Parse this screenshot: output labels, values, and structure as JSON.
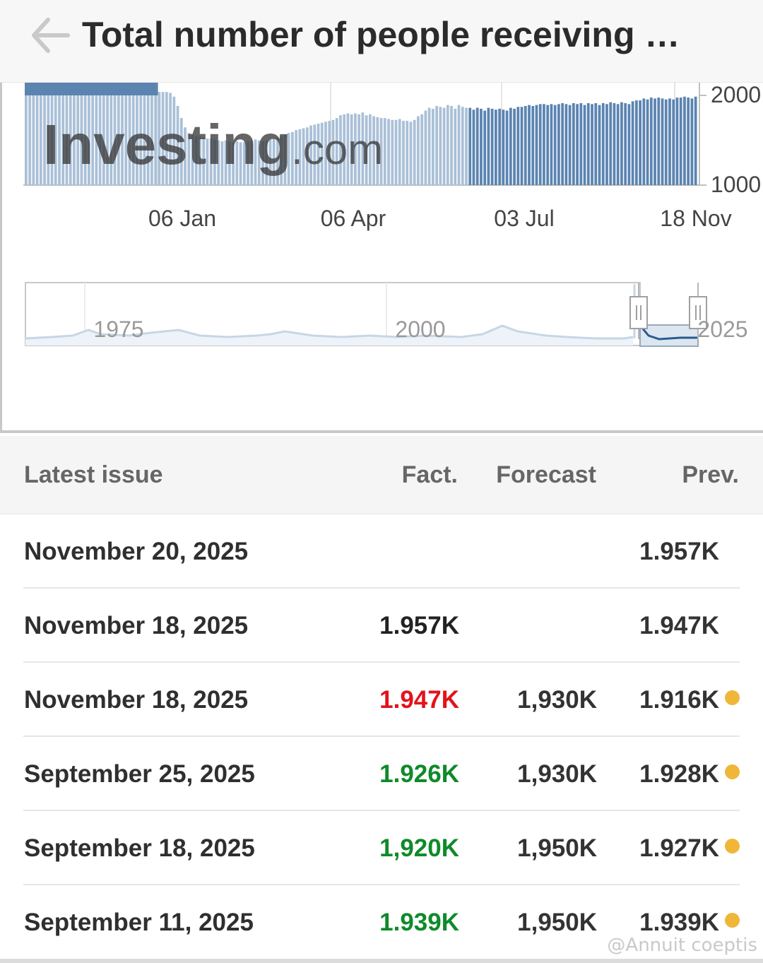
{
  "header": {
    "title": "Total number of people receiving …",
    "back_icon": "arrow-left-icon"
  },
  "chart_data": {
    "type": "bar",
    "y_ticks": [
      "2000",
      "1000"
    ],
    "x_ticks": [
      "06 Jan",
      "06 Apr",
      "03 Jul",
      "18 Nov"
    ],
    "ylim": [
      1000,
      2100
    ],
    "watermark": "Investing.com",
    "values": [
      2000,
      2000,
      2000,
      2000,
      2000,
      2000,
      2000,
      2000,
      2000,
      2000,
      2000,
      2000,
      2000,
      2000,
      2000,
      2000,
      2000,
      2000,
      2000,
      2000,
      2000,
      2000,
      2000,
      2000,
      2000,
      2000,
      2000,
      2000,
      2000,
      2000,
      2000,
      2000,
      2000,
      2000,
      2000,
      2000,
      2000,
      2000,
      2000,
      1990,
      1950,
      1850,
      1720,
      1620,
      1560,
      1540,
      1530,
      1520,
      1510,
      1500,
      1500,
      1490,
      1480,
      1470,
      1480,
      1470,
      1460,
      1470,
      1460,
      1460,
      1470,
      1480,
      1490,
      1480,
      1470,
      1480,
      1490,
      1500,
      1510,
      1520,
      1540,
      1560,
      1570,
      1590,
      1600,
      1610,
      1620,
      1640,
      1650,
      1660,
      1670,
      1680,
      1690,
      1700,
      1720,
      1750,
      1760,
      1770,
      1760,
      1770,
      1760,
      1780,
      1750,
      1760,
      1740,
      1730,
      1720,
      1720,
      1710,
      1700,
      1700,
      1710,
      1690,
      1690,
      1680,
      1700,
      1740,
      1760,
      1800,
      1830,
      1820,
      1850,
      1840,
      1830,
      1860,
      1850,
      1820,
      1860,
      1840,
      1830,
      1830,
      1810,
      1830,
      1820,
      1800,
      1830,
      1820,
      1810,
      1820,
      1810,
      1800,
      1830,
      1820,
      1840,
      1840,
      1850,
      1860,
      1850,
      1860,
      1870,
      1870,
      1860,
      1870,
      1860,
      1870,
      1880,
      1870,
      1860,
      1880,
      1870,
      1880,
      1860,
      1880,
      1870,
      1880,
      1860,
      1880,
      1870,
      1890,
      1880,
      1870,
      1890,
      1880,
      1870,
      1900,
      1910,
      1910,
      1930,
      1920,
      1940,
      1930,
      1940,
      1930,
      1920,
      1930,
      1920,
      1940,
      1940,
      1950,
      1940,
      1930,
      1950
    ],
    "shaded_start_index": 0,
    "shaded_end_index": 119,
    "navigator": {
      "labels": [
        "1975",
        "2000",
        "2025"
      ]
    }
  },
  "table": {
    "headers": {
      "date": "Latest issue",
      "fact": "Fact.",
      "forecast": "Forecast",
      "prev": "Prev."
    },
    "rows": [
      {
        "date": "November 20, 2025",
        "fact": "",
        "fact_color": "#222222",
        "forecast": "",
        "prev": "1.957K",
        "dot": false
      },
      {
        "date": "November 18, 2025",
        "fact": "1.957K",
        "fact_color": "#222222",
        "forecast": "",
        "prev": "1.947K",
        "dot": false
      },
      {
        "date": "November 18, 2025",
        "fact": "1.947K",
        "fact_color": "#e3121b",
        "forecast": "1,930K",
        "prev": "1.916K",
        "dot": true
      },
      {
        "date": "September 25, 2025",
        "fact": "1.926K",
        "fact_color": "#0f8a2a",
        "forecast": "1,930K",
        "prev": "1.928K",
        "dot": true
      },
      {
        "date": "September 18, 2025",
        "fact": "1,920K",
        "fact_color": "#0f8a2a",
        "forecast": "1,950K",
        "prev": "1.927K",
        "dot": true
      },
      {
        "date": "September 11, 2025",
        "fact": "1.939K",
        "fact_color": "#0f8a2a",
        "forecast": "1,950K",
        "prev": "1.939K",
        "dot": true
      }
    ]
  },
  "watermark_text": "@Annuit coeptis",
  "colors": {
    "bar": "#5b84b1",
    "bar_shaded": "#aac0d8",
    "navigator_line": "#2a5b8f",
    "dot": "#f0b638"
  }
}
